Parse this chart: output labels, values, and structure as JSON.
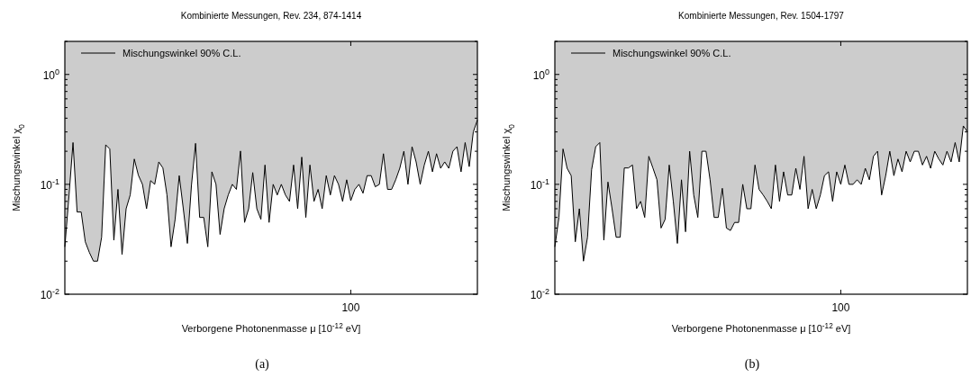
{
  "chart_data": [
    {
      "type": "line",
      "title": "Kombinierte Messungen, Rev. 234, 874-1414",
      "xlabel": "Verborgene Photonenmasse μ [10$^{-12}$ eV]",
      "ylabel": "Mischungswinkel χ$_{0}$",
      "annotations": [
        "(a)"
      ],
      "log": "y",
      "legend": "top left",
      "categories": [
        null,
        null,
        null,
        null,
        null,
        null,
        null,
        null,
        null,
        null,
        null,
        null,
        null,
        null,
        null,
        null,
        null,
        null,
        null,
        null,
        null,
        null,
        null,
        null,
        null,
        null,
        null,
        null,
        null,
        null,
        null,
        null,
        null,
        null,
        null,
        null,
        null,
        null,
        null,
        null,
        null,
        null,
        null,
        null,
        null,
        null,
        null,
        null,
        null,
        null,
        null,
        null,
        null,
        null,
        null,
        null,
        null,
        null,
        null,
        null,
        null,
        null,
        null,
        null,
        null,
        null,
        null,
        null,
        null,
        null,
        "100",
        null,
        null,
        null,
        null,
        null,
        null,
        null,
        null,
        null,
        null,
        null,
        null,
        null,
        null,
        null,
        null,
        null,
        null,
        null,
        null,
        null,
        null,
        null,
        null,
        null,
        null,
        null,
        null,
        null,
        null,
        null
      ],
      "ylim": [
        0.01,
        2
      ],
      "yticks": [
        {
          "value": 0.01,
          "label": "10$^{-2}$"
        },
        {
          "value": 0.02,
          "label": null
        },
        {
          "value": 0.03,
          "label": null
        },
        {
          "value": 0.04,
          "label": null
        },
        {
          "value": 0.05,
          "label": null
        },
        {
          "value": 0.06,
          "label": null
        },
        {
          "value": 0.07,
          "label": null
        },
        {
          "value": 0.08,
          "label": null
        },
        {
          "value": 0.09,
          "label": null
        },
        {
          "value": 0.1,
          "label": "10$^{-1}$"
        },
        {
          "value": 0.2,
          "label": null
        },
        {
          "value": 0.3,
          "label": null
        },
        {
          "value": 0.4,
          "label": null
        },
        {
          "value": 0.5,
          "label": null
        },
        {
          "value": 0.6,
          "label": null
        },
        {
          "value": 0.7,
          "label": null
        },
        {
          "value": 0.8,
          "label": null
        },
        {
          "value": 0.9,
          "label": null
        },
        {
          "value": 1,
          "label": "10$^{0}$"
        },
        {
          "value": 2,
          "label": null
        }
      ],
      "series": [
        {
          "name": "Mischungswinkel 90% C.L.",
          "color": "#000000",
          "lower": [
            0.027,
            0.078,
            0.24,
            0.056,
            0.056,
            0.03,
            0.024,
            0.02,
            0.02,
            0.033,
            0.229,
            0.21,
            0.031,
            0.09,
            0.023,
            0.06,
            0.08,
            0.17,
            0.121,
            0.1,
            0.06,
            0.108,
            0.1,
            0.16,
            0.141,
            0.08,
            0.027,
            0.048,
            0.12,
            0.06,
            0.029,
            0.098,
            0.236,
            0.05,
            0.05,
            0.027,
            0.13,
            0.1,
            0.035,
            0.06,
            0.08,
            0.1,
            0.09,
            0.201,
            0.045,
            0.06,
            0.128,
            0.06,
            0.048,
            0.15,
            0.045,
            0.1,
            0.08,
            0.1,
            0.08,
            0.07,
            0.15,
            0.06,
            0.177,
            0.05,
            0.15,
            0.07,
            0.09,
            0.06,
            0.12,
            0.08,
            0.12,
            0.1,
            0.07,
            0.11,
            0.071,
            0.09,
            0.1,
            0.083,
            0.12,
            0.12,
            0.095,
            0.1,
            0.19,
            0.09,
            0.09,
            0.11,
            0.14,
            0.2,
            0.1,
            0.22,
            0.16,
            0.1,
            0.15,
            0.2,
            0.13,
            0.19,
            0.14,
            0.16,
            0.14,
            0.2,
            0.22,
            0.13,
            0.24,
            0.145,
            0.3,
            0.385
          ],
          "upper": [
            2,
            2,
            2,
            2,
            2,
            2,
            2,
            2,
            2,
            2,
            2,
            2,
            2,
            2,
            2,
            2,
            2,
            2,
            2,
            2,
            2,
            2,
            2,
            2,
            2,
            2,
            2,
            2,
            2,
            2,
            2,
            2,
            2,
            2,
            2,
            2,
            2,
            2,
            2,
            2,
            2,
            2,
            2,
            2,
            2,
            2,
            2,
            2,
            2,
            2,
            2,
            2,
            2,
            2,
            2,
            2,
            2,
            2,
            2,
            2,
            2,
            2,
            2,
            2,
            2,
            2,
            2,
            2,
            2,
            2,
            2,
            2,
            2,
            2,
            2,
            2,
            2,
            2,
            2,
            2,
            2,
            2,
            2,
            2,
            2,
            2,
            2,
            2,
            2,
            2,
            2,
            2,
            2,
            2,
            2,
            2,
            2,
            2,
            2,
            2,
            2,
            2
          ],
          "values": [
            0.027,
            0.078,
            0.24,
            0.056,
            0.056,
            0.03,
            0.024,
            0.02,
            0.02,
            0.033,
            0.229,
            0.21,
            0.031,
            0.09,
            0.023,
            0.06,
            0.08,
            0.17,
            0.121,
            0.1,
            0.06,
            0.108,
            0.1,
            0.16,
            0.141,
            0.08,
            0.027,
            0.048,
            0.12,
            0.06,
            0.029,
            0.098,
            0.236,
            0.05,
            0.05,
            0.027,
            0.13,
            0.1,
            0.035,
            0.06,
            0.08,
            0.1,
            0.09,
            0.201,
            0.045,
            0.06,
            0.128,
            0.06,
            0.048,
            0.15,
            0.045,
            0.1,
            0.08,
            0.1,
            0.08,
            0.07,
            0.15,
            0.06,
            0.177,
            0.05,
            0.15,
            0.07,
            0.09,
            0.06,
            0.12,
            0.08,
            0.12,
            0.1,
            0.07,
            0.11,
            0.071,
            0.09,
            0.1,
            0.083,
            0.12,
            0.12,
            0.095,
            0.1,
            0.19,
            0.09,
            0.09,
            0.11,
            0.14,
            0.2,
            0.1,
            0.22,
            0.16,
            0.1,
            0.15,
            0.2,
            0.13,
            0.19,
            0.14,
            0.16,
            0.14,
            0.2,
            0.22,
            0.13,
            0.24,
            0.145,
            0.3,
            0.385
          ]
        }
      ]
    },
    {
      "type": "line",
      "title": "Kombinierte Messungen, Rev. 1504-1797",
      "xlabel": "Verborgene Photonenmasse μ [10$^{-12}$ eV]",
      "ylabel": "Mischungswinkel χ$_{0}$",
      "annotations": [
        "(b)"
      ],
      "log": "y",
      "legend": "top left",
      "categories": [
        null,
        null,
        null,
        null,
        null,
        null,
        null,
        null,
        null,
        null,
        null,
        null,
        null,
        null,
        null,
        null,
        null,
        null,
        null,
        null,
        null,
        null,
        null,
        null,
        null,
        null,
        null,
        null,
        null,
        null,
        null,
        null,
        null,
        null,
        null,
        null,
        null,
        null,
        null,
        null,
        null,
        null,
        null,
        null,
        null,
        null,
        null,
        null,
        null,
        null,
        null,
        null,
        null,
        null,
        null,
        null,
        null,
        null,
        null,
        null,
        null,
        null,
        null,
        null,
        null,
        null,
        null,
        null,
        null,
        null,
        "100",
        null,
        null,
        null,
        null,
        null,
        null,
        null,
        null,
        null,
        null,
        null,
        null,
        null,
        null,
        null,
        null,
        null,
        null,
        null,
        null,
        null,
        null,
        null,
        null,
        null,
        null,
        null,
        null,
        null,
        null,
        null
      ],
      "ylim": [
        0.01,
        2
      ],
      "yticks": [
        {
          "value": 0.01,
          "label": "10$^{-2}$"
        },
        {
          "value": 0.02,
          "label": null
        },
        {
          "value": 0.03,
          "label": null
        },
        {
          "value": 0.04,
          "label": null
        },
        {
          "value": 0.05,
          "label": null
        },
        {
          "value": 0.06,
          "label": null
        },
        {
          "value": 0.07,
          "label": null
        },
        {
          "value": 0.08,
          "label": null
        },
        {
          "value": 0.09,
          "label": null
        },
        {
          "value": 0.1,
          "label": "10$^{-1}$"
        },
        {
          "value": 0.2,
          "label": null
        },
        {
          "value": 0.3,
          "label": null
        },
        {
          "value": 0.4,
          "label": null
        },
        {
          "value": 0.5,
          "label": null
        },
        {
          "value": 0.6,
          "label": null
        },
        {
          "value": 0.7,
          "label": null
        },
        {
          "value": 0.8,
          "label": null
        },
        {
          "value": 0.9,
          "label": null
        },
        {
          "value": 1,
          "label": "10$^{0}$"
        },
        {
          "value": 2,
          "label": null
        }
      ],
      "series": [
        {
          "name": "Mischungswinkel 90% C.L.",
          "color": "#000000",
          "lower": [
            0.027,
            0.05,
            0.21,
            0.14,
            0.12,
            0.03,
            0.06,
            0.02,
            0.033,
            0.136,
            0.22,
            0.24,
            0.031,
            0.105,
            0.06,
            0.033,
            0.033,
            0.141,
            0.141,
            0.15,
            0.06,
            0.07,
            0.05,
            0.18,
            0.141,
            0.11,
            0.04,
            0.048,
            0.15,
            0.07,
            0.029,
            0.11,
            0.037,
            0.2,
            0.08,
            0.05,
            0.2,
            0.2,
            0.11,
            0.05,
            0.05,
            0.092,
            0.04,
            0.038,
            0.045,
            0.045,
            0.1,
            0.06,
            0.06,
            0.15,
            0.09,
            0.08,
            0.07,
            0.06,
            0.15,
            0.07,
            0.13,
            0.08,
            0.08,
            0.14,
            0.09,
            0.18,
            0.06,
            0.09,
            0.06,
            0.08,
            0.12,
            0.13,
            0.07,
            0.13,
            0.1,
            0.15,
            0.1,
            0.1,
            0.11,
            0.1,
            0.14,
            0.11,
            0.18,
            0.2,
            0.08,
            0.12,
            0.2,
            0.12,
            0.17,
            0.13,
            0.2,
            0.16,
            0.2,
            0.2,
            0.15,
            0.18,
            0.14,
            0.2,
            0.17,
            0.15,
            0.2,
            0.16,
            0.24,
            0.16,
            0.34,
            0.3
          ],
          "upper": [
            2,
            2,
            2,
            2,
            2,
            2,
            2,
            2,
            2,
            2,
            2,
            2,
            2,
            2,
            2,
            2,
            2,
            2,
            2,
            2,
            2,
            2,
            2,
            2,
            2,
            2,
            2,
            2,
            2,
            2,
            2,
            2,
            2,
            2,
            2,
            2,
            2,
            2,
            2,
            2,
            2,
            2,
            2,
            2,
            2,
            2,
            2,
            2,
            2,
            2,
            2,
            2,
            2,
            2,
            2,
            2,
            2,
            2,
            2,
            2,
            2,
            2,
            2,
            2,
            2,
            2,
            2,
            2,
            2,
            2,
            2,
            2,
            2,
            2,
            2,
            2,
            2,
            2,
            2,
            2,
            2,
            2,
            2,
            2,
            2,
            2,
            2,
            2,
            2,
            2,
            2,
            2,
            2,
            2,
            2,
            2,
            2,
            2,
            2,
            2,
            2,
            2
          ],
          "values": [
            0.027,
            0.05,
            0.21,
            0.14,
            0.12,
            0.03,
            0.06,
            0.02,
            0.033,
            0.136,
            0.22,
            0.24,
            0.031,
            0.105,
            0.06,
            0.033,
            0.033,
            0.141,
            0.141,
            0.15,
            0.06,
            0.07,
            0.05,
            0.18,
            0.141,
            0.11,
            0.04,
            0.048,
            0.15,
            0.07,
            0.029,
            0.11,
            0.037,
            0.2,
            0.08,
            0.05,
            0.2,
            0.2,
            0.11,
            0.05,
            0.05,
            0.092,
            0.04,
            0.038,
            0.045,
            0.045,
            0.1,
            0.06,
            0.06,
            0.15,
            0.09,
            0.08,
            0.07,
            0.06,
            0.15,
            0.07,
            0.13,
            0.08,
            0.08,
            0.14,
            0.09,
            0.18,
            0.06,
            0.09,
            0.06,
            0.08,
            0.12,
            0.13,
            0.07,
            0.13,
            0.1,
            0.15,
            0.1,
            0.1,
            0.11,
            0.1,
            0.14,
            0.11,
            0.18,
            0.2,
            0.08,
            0.12,
            0.2,
            0.12,
            0.17,
            0.13,
            0.2,
            0.16,
            0.2,
            0.2,
            0.15,
            0.18,
            0.14,
            0.2,
            0.17,
            0.15,
            0.2,
            0.16,
            0.24,
            0.16,
            0.34,
            0.3
          ]
        }
      ]
    }
  ]
}
